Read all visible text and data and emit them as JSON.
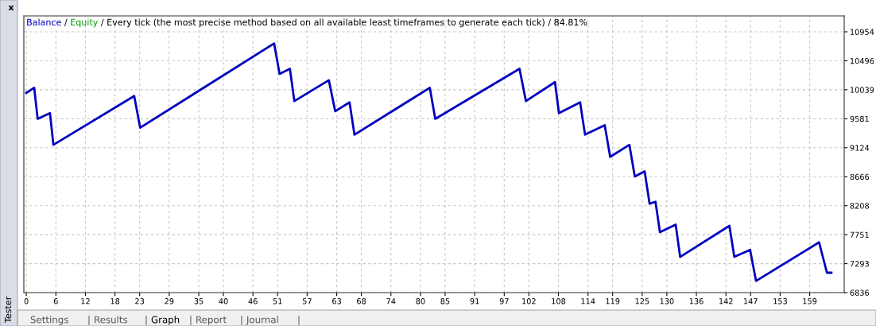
{
  "chart_data": {
    "type": "line",
    "title": "Every tick (the most precise method based on all available least timeframes to generate each tick) / 84.81%",
    "x": [
      0,
      1.6,
      2.3,
      4.8,
      5.5,
      21.9,
      23.1,
      50.3,
      51.4,
      53.5,
      54.4,
      61.4,
      62.7,
      65.6,
      66.6,
      81.9,
      83,
      100.1,
      101.4,
      107.3,
      108.1,
      112.4,
      113.4,
      117.4,
      118.5,
      122.4,
      123.5,
      125.5,
      126.5,
      127.7,
      128.6,
      131.8,
      132.7,
      142.7,
      143.7,
      146.9,
      148.1,
      160.9,
      162.5,
      163.4
    ],
    "series": [
      {
        "name": "Balance",
        "color": "#0000c0",
        "values": [
          9990,
          10070,
          9580,
          9670,
          9170,
          9940,
          9440,
          10770,
          10290,
          10370,
          9860,
          10190,
          9700,
          9840,
          9330,
          10070,
          9580,
          10370,
          9860,
          10160,
          9670,
          9840,
          9330,
          9480,
          8980,
          9170,
          8670,
          8750,
          8240,
          8270,
          7790,
          7910,
          7400,
          7890,
          7400,
          7510,
          7020,
          7630,
          7150,
          7150
        ]
      }
    ],
    "xlim": [
      -0.5,
      166
    ],
    "xticks": [
      0,
      6,
      12,
      18,
      23,
      29,
      35,
      40,
      46,
      51,
      57,
      63,
      68,
      74,
      80,
      85,
      91,
      97,
      102,
      108,
      114,
      119,
      125,
      130,
      136,
      142,
      147,
      153,
      159
    ],
    "ylim": [
      6836,
      11205
    ],
    "yticks": [
      6836,
      7293,
      7751,
      8208,
      8666,
      9124,
      9581,
      10039,
      10496,
      10954
    ],
    "grid": true,
    "legend": "top left",
    "marker": "none",
    "line_style": "solid",
    "annotations": [
      "/",
      "Equity",
      "/",
      "x",
      "Tester",
      "Settings",
      "|",
      "Results",
      "|",
      "Graph",
      "|",
      "Report",
      "|",
      "Journal",
      "|"
    ]
  }
}
